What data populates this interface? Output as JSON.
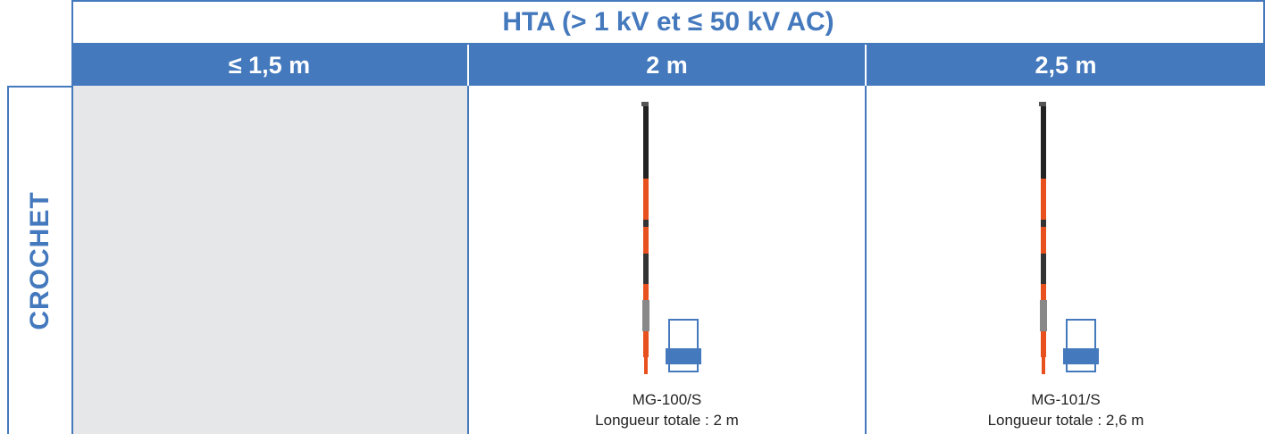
{
  "header": {
    "title": "HTA (> 1 kV et ≤ 50 kV AC)",
    "columns": [
      "≤ 1,5 m",
      "2 m",
      "2,5 m"
    ]
  },
  "row_label": "CROCHET",
  "products": [
    {
      "model": "MG-100/S",
      "length": "Longueur totale : 2 m"
    },
    {
      "model": "MG-101/S",
      "length": "Longueur totale : 2,6 m"
    }
  ]
}
